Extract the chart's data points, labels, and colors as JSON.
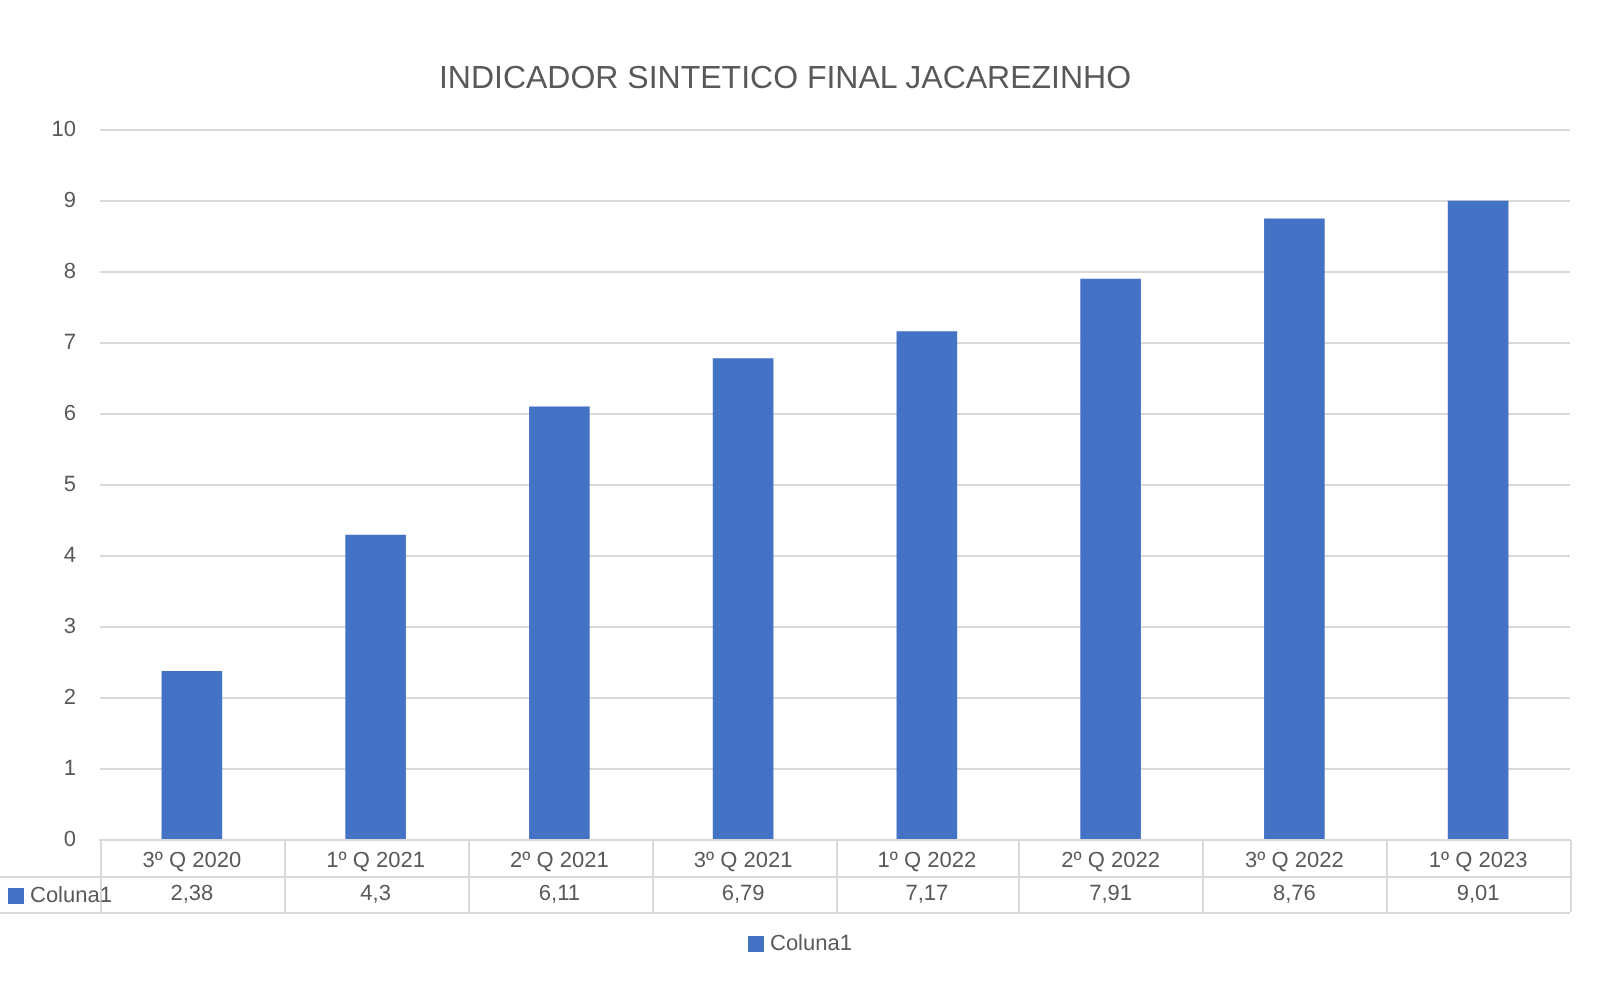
{
  "chart_data": {
    "type": "bar",
    "title": "INDICADOR SINTETICO FINAL JACAREZINHO",
    "categories": [
      "3º Q 2020",
      "1º Q 2021",
      "2º Q 2021",
      "3º Q 2021",
      "1º Q 2022",
      "2º Q 2022",
      "3º Q 2022",
      "1º Q 2023"
    ],
    "series": [
      {
        "name": "Coluna1",
        "color": "#4472c4",
        "values": [
          2.38,
          4.3,
          6.11,
          6.79,
          7.17,
          7.91,
          8.76,
          9.01
        ],
        "value_labels": [
          "2,38",
          "4,3",
          "6,11",
          "6,79",
          "7,17",
          "7,91",
          "8,76",
          "9,01"
        ]
      }
    ],
    "ylim": [
      0,
      10
    ],
    "yticks": [
      0,
      1,
      2,
      3,
      4,
      5,
      6,
      7,
      8,
      9,
      10
    ],
    "grid": "y",
    "legend": "bottom"
  }
}
